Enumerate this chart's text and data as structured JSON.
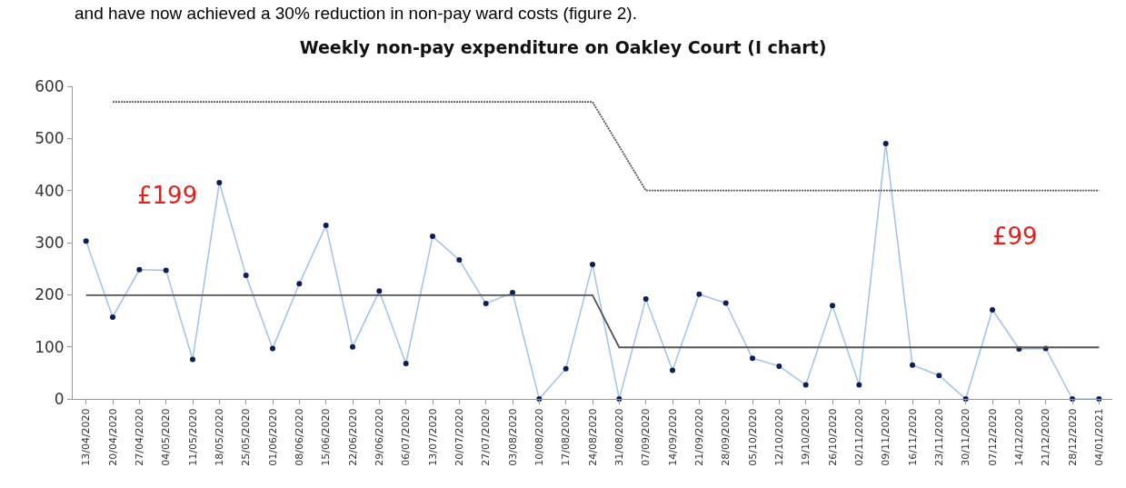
{
  "chart_data": {
    "type": "line",
    "title": "Weekly non-pay expenditure on Oakley Court (I chart)",
    "categories": [
      "13/04/2020",
      "20/04/2020",
      "27/04/2020",
      "04/05/2020",
      "11/05/2020",
      "18/05/2020",
      "25/05/2020",
      "01/06/2020",
      "08/06/2020",
      "15/06/2020",
      "22/06/2020",
      "29/06/2020",
      "06/07/2020",
      "13/07/2020",
      "20/07/2020",
      "27/07/2020",
      "03/08/2020",
      "10/08/2020",
      "17/08/2020",
      "24/08/2020",
      "31/08/2020",
      "07/09/2020",
      "14/09/2020",
      "21/09/2020",
      "28/09/2020",
      "05/10/2020",
      "12/10/2020",
      "19/10/2020",
      "26/10/2020",
      "02/11/2020",
      "09/11/2020",
      "16/11/2020",
      "23/11/2020",
      "30/11/2020",
      "07/12/2020",
      "14/12/2020",
      "21/12/2020",
      "28/12/2020",
      "04/01/2021"
    ],
    "series": [
      {
        "color": "#9cc3ea",
        "marker": "circle",
        "line_style": "solid",
        "values": [
          303,
          157,
          248,
          247,
          76,
          415,
          237,
          97,
          221,
          333,
          100,
          207,
          68,
          312,
          267,
          183,
          204,
          0,
          58,
          258,
          0,
          192,
          55,
          201,
          184,
          78,
          63,
          27,
          179,
          27,
          490,
          65,
          45,
          0,
          171,
          96,
          97,
          0,
          0
        ]
      },
      {
        "color": "#555555",
        "marker": "none",
        "line_style": "solid",
        "values": [
          199,
          199,
          199,
          199,
          199,
          199,
          199,
          199,
          199,
          199,
          199,
          199,
          199,
          199,
          199,
          199,
          199,
          199,
          199,
          199,
          99,
          99,
          99,
          99,
          99,
          99,
          99,
          99,
          99,
          99,
          99,
          99,
          99,
          99,
          99,
          99,
          99,
          99,
          99
        ]
      },
      {
        "color": "#555555",
        "marker": "none",
        "line_style": "dotted",
        "values": [
          null,
          570,
          570,
          570,
          570,
          570,
          570,
          570,
          570,
          570,
          570,
          570,
          570,
          570,
          570,
          570,
          570,
          570,
          570,
          570,
          485,
          400,
          400,
          400,
          400,
          400,
          400,
          400,
          400,
          400,
          400,
          400,
          400,
          400,
          400,
          400,
          400,
          400,
          400
        ]
      }
    ],
    "ylim": [
      0,
      600
    ],
    "yticks": [
      0,
      100,
      200,
      300,
      400,
      500,
      600
    ],
    "annotations": [
      "and have now achieved a 30% reduction in non-pay ward costs (figure 2).",
      "£199",
      "£99"
    ]
  }
}
